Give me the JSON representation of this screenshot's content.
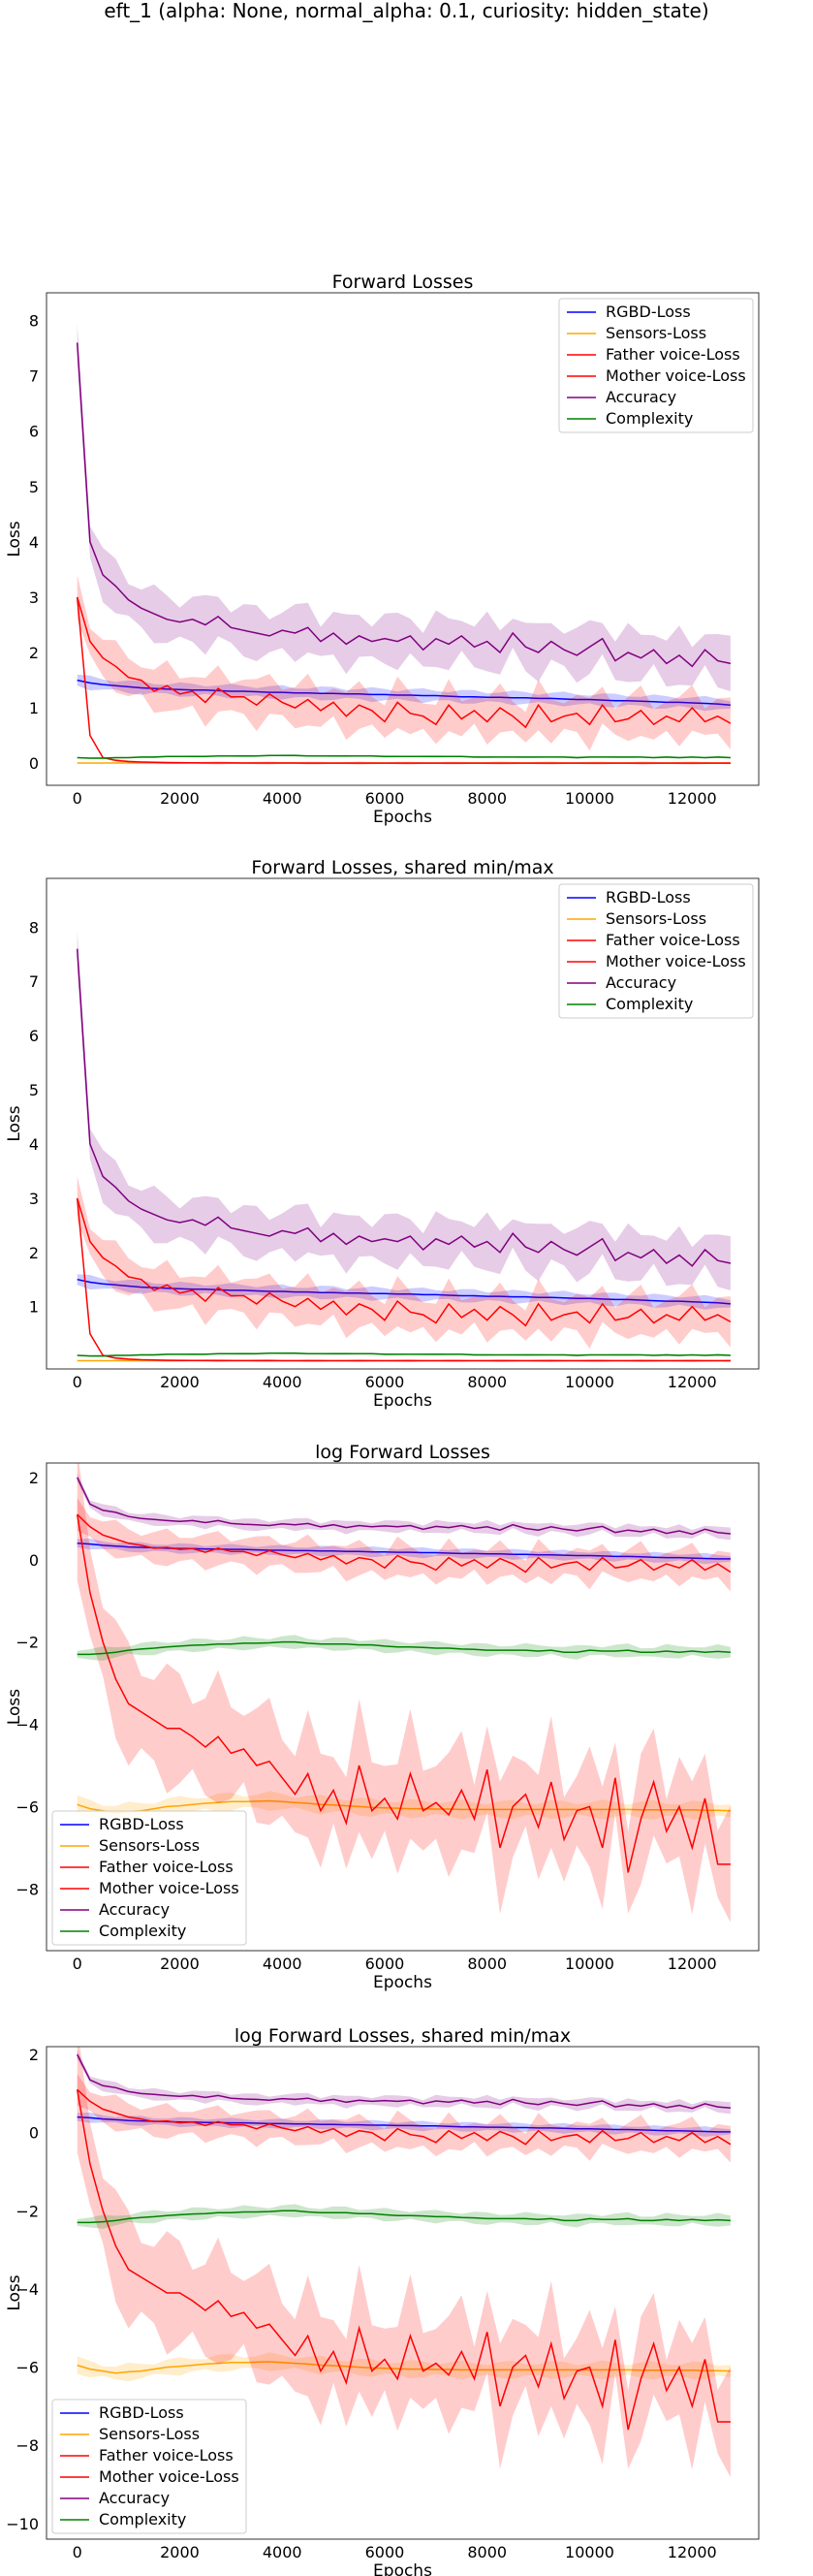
{
  "figure": {
    "suptitle": "eft_1 (alpha: None, normal_alpha: 0.1, curiosity: hidden_state)"
  },
  "chart_data": [
    {
      "type": "line",
      "title": "Forward Losses",
      "xlabel": "Epochs",
      "ylabel": "Loss",
      "xlim": [
        -600,
        13300
      ],
      "ylim": [
        -0.4,
        8.5
      ],
      "xticks": [
        0,
        2000,
        4000,
        6000,
        8000,
        10000,
        12000
      ],
      "yticks": [
        0,
        1,
        2,
        3,
        4,
        5,
        6,
        7,
        8
      ],
      "log": false,
      "legend_position": "top-right",
      "grid": false
    },
    {
      "type": "line",
      "title": "Forward Losses, shared min/max",
      "xlabel": "Epochs",
      "ylabel": "Loss",
      "xlim": [
        -600,
        13300
      ],
      "ylim": [
        -0.15,
        8.9
      ],
      "xticks": [
        0,
        2000,
        4000,
        6000,
        8000,
        10000,
        12000
      ],
      "yticks": [
        1,
        2,
        3,
        4,
        5,
        6,
        7,
        8
      ],
      "log": false,
      "legend_position": "top-right",
      "grid": false
    },
    {
      "type": "line",
      "title": "log Forward Losses",
      "xlabel": "Epochs",
      "ylabel": "Loss",
      "xlim": [
        -600,
        13300
      ],
      "ylim": [
        -9.5,
        2.35
      ],
      "xticks": [
        0,
        2000,
        4000,
        6000,
        8000,
        10000,
        12000
      ],
      "yticks": [
        2,
        0,
        -2,
        -4,
        -6,
        -8
      ],
      "log": true,
      "legend_position": "bottom-left",
      "grid": false
    },
    {
      "type": "line",
      "title": "log Forward Losses, shared min/max",
      "xlabel": "Epochs",
      "ylabel": "Loss",
      "xlim": [
        -600,
        13300
      ],
      "ylim": [
        -10.4,
        2.2
      ],
      "xticks": [
        0,
        2000,
        4000,
        6000,
        8000,
        10000,
        12000
      ],
      "yticks": [
        2,
        0,
        -2,
        -4,
        -6,
        -8,
        -10
      ],
      "log": true,
      "legend_position": "bottom-left",
      "grid": false
    }
  ],
  "series_legend": [
    {
      "name": "RGBD-Loss",
      "color": "#0000ff"
    },
    {
      "name": "Sensors-Loss",
      "color": "#ffa500"
    },
    {
      "name": "Father voice-Loss",
      "color": "#ff0000"
    },
    {
      "name": "Mother voice-Loss",
      "color": "#ff0000"
    },
    {
      "name": "Accuracy",
      "color": "#800080"
    },
    {
      "name": "Complexity",
      "color": "#008000"
    }
  ],
  "series_data": {
    "x_step": 250,
    "x_count": 52,
    "linear": {
      "rgbd": {
        "mean": [
          1.5,
          1.45,
          1.42,
          1.4,
          1.38,
          1.36,
          1.35,
          1.34,
          1.33,
          1.32,
          1.32,
          1.31,
          1.3,
          1.3,
          1.29,
          1.28,
          1.28,
          1.27,
          1.27,
          1.26,
          1.26,
          1.25,
          1.25,
          1.24,
          1.24,
          1.23,
          1.23,
          1.22,
          1.22,
          1.21,
          1.2,
          1.2,
          1.19,
          1.19,
          1.18,
          1.18,
          1.17,
          1.17,
          1.16,
          1.15,
          1.15,
          1.14,
          1.13,
          1.13,
          1.12,
          1.11,
          1.1,
          1.1,
          1.09,
          1.08,
          1.07,
          1.05
        ],
        "band": 0.1
      },
      "sensors": {
        "mean": [
          0.0025,
          0.0024,
          0.0023,
          0.0022,
          0.0022,
          0.0022,
          0.0023,
          0.0023,
          0.0024,
          0.0025,
          0.0026,
          0.0027,
          0.0027,
          0.0028,
          0.0028,
          0.0029,
          0.0028,
          0.0028,
          0.0027,
          0.0026,
          0.0026,
          0.0025,
          0.0025,
          0.0024,
          0.0024,
          0.0024,
          0.0023,
          0.0023,
          0.0023,
          0.0023,
          0.0023,
          0.0023,
          0.0023,
          0.0023,
          0.0023,
          0.0023,
          0.0023,
          0.0023,
          0.0023,
          0.0023,
          0.0023,
          0.0023,
          0.0023,
          0.0023,
          0.0022,
          0.0022,
          0.0022,
          0.0022,
          0.0022,
          0.0022,
          0.0021,
          0.0021
        ],
        "band": 0.001
      },
      "father": {
        "mean": [
          3.0,
          0.5,
          0.1,
          0.05,
          0.03,
          0.02,
          0.015,
          0.01,
          0.008,
          0.006,
          0.005,
          0.004,
          0.004,
          0.003,
          0.003,
          0.003,
          0.0025,
          0.0025,
          0.002,
          0.002,
          0.002,
          0.002,
          0.002,
          0.002,
          0.002,
          0.002,
          0.002,
          0.002,
          0.002,
          0.002,
          0.002,
          0.002,
          0.002,
          0.002,
          0.002,
          0.002,
          0.002,
          0.002,
          0.002,
          0.002,
          0.002,
          0.002,
          0.002,
          0.002,
          0.002,
          0.002,
          0.002,
          0.002,
          0.002,
          0.002,
          0.002,
          0.002
        ],
        "band": 0.02
      },
      "mother": {
        "mean": [
          3.0,
          2.2,
          1.9,
          1.75,
          1.55,
          1.5,
          1.3,
          1.4,
          1.25,
          1.3,
          1.1,
          1.35,
          1.2,
          1.2,
          1.05,
          1.25,
          1.1,
          1.0,
          1.15,
          0.95,
          1.1,
          0.85,
          1.05,
          0.95,
          0.75,
          1.1,
          0.9,
          0.85,
          0.7,
          1.05,
          0.8,
          0.95,
          0.75,
          1.0,
          0.85,
          0.65,
          1.05,
          0.75,
          0.85,
          0.9,
          0.7,
          1.05,
          0.75,
          0.8,
          0.95,
          0.7,
          0.85,
          0.75,
          1.0,
          0.75,
          0.85,
          0.72
        ],
        "band": 0.35
      },
      "accuracy": {
        "mean": [
          7.6,
          4.0,
          3.4,
          3.2,
          2.95,
          2.8,
          2.7,
          2.6,
          2.55,
          2.6,
          2.5,
          2.65,
          2.45,
          2.4,
          2.35,
          2.3,
          2.4,
          2.35,
          2.45,
          2.2,
          2.35,
          2.15,
          2.3,
          2.2,
          2.25,
          2.2,
          2.3,
          2.05,
          2.25,
          2.15,
          2.3,
          2.1,
          2.2,
          2.0,
          2.35,
          2.1,
          2.0,
          2.2,
          2.05,
          1.95,
          2.1,
          2.25,
          1.85,
          2.0,
          1.9,
          2.05,
          1.8,
          1.95,
          1.75,
          2.05,
          1.85,
          1.8
        ],
        "band": 0.4
      },
      "complexity": {
        "mean": [
          0.1,
          0.09,
          0.09,
          0.1,
          0.1,
          0.11,
          0.11,
          0.12,
          0.12,
          0.12,
          0.12,
          0.13,
          0.13,
          0.13,
          0.13,
          0.14,
          0.14,
          0.14,
          0.13,
          0.13,
          0.13,
          0.13,
          0.13,
          0.13,
          0.12,
          0.12,
          0.12,
          0.12,
          0.12,
          0.12,
          0.12,
          0.11,
          0.11,
          0.11,
          0.11,
          0.11,
          0.11,
          0.11,
          0.11,
          0.1,
          0.11,
          0.11,
          0.11,
          0.11,
          0.11,
          0.1,
          0.11,
          0.1,
          0.11,
          0.1,
          0.11,
          0.1
        ],
        "band": 0.015
      }
    },
    "log": {
      "rgbd": {
        "mean": [
          0.4,
          0.38,
          0.35,
          0.33,
          0.31,
          0.3,
          0.29,
          0.28,
          0.27,
          0.27,
          0.26,
          0.26,
          0.25,
          0.25,
          0.24,
          0.23,
          0.23,
          0.22,
          0.22,
          0.21,
          0.21,
          0.2,
          0.2,
          0.19,
          0.19,
          0.18,
          0.18,
          0.17,
          0.17,
          0.16,
          0.15,
          0.15,
          0.14,
          0.14,
          0.13,
          0.13,
          0.12,
          0.12,
          0.11,
          0.1,
          0.1,
          0.09,
          0.08,
          0.08,
          0.07,
          0.06,
          0.05,
          0.05,
          0.04,
          0.03,
          0.02,
          0.02
        ],
        "band": 0.1
      },
      "sensors": {
        "mean": [
          -5.95,
          -6.05,
          -6.1,
          -6.15,
          -6.12,
          -6.1,
          -6.05,
          -6.0,
          -5.98,
          -5.95,
          -5.92,
          -5.9,
          -5.88,
          -5.88,
          -5.87,
          -5.86,
          -5.88,
          -5.9,
          -5.92,
          -5.95,
          -5.96,
          -5.98,
          -6.0,
          -6.02,
          -6.03,
          -6.04,
          -6.05,
          -6.05,
          -6.06,
          -6.06,
          -6.07,
          -6.07,
          -6.07,
          -6.07,
          -6.07,
          -6.07,
          -6.07,
          -6.07,
          -6.07,
          -6.07,
          -6.07,
          -6.07,
          -6.07,
          -6.07,
          -6.08,
          -6.08,
          -6.08,
          -6.08,
          -6.08,
          -6.09,
          -6.09,
          -6.1
        ],
        "band": 0.18
      },
      "father": {
        "mean": [
          1.1,
          -0.8,
          -2.0,
          -2.9,
          -3.5,
          -3.7,
          -3.9,
          -4.1,
          -4.1,
          -4.3,
          -4.55,
          -4.3,
          -4.7,
          -4.6,
          -5.0,
          -4.9,
          -5.3,
          -5.7,
          -5.2,
          -6.1,
          -5.6,
          -6.4,
          -5.0,
          -6.1,
          -5.8,
          -6.3,
          -5.2,
          -6.1,
          -5.9,
          -6.2,
          -5.6,
          -6.3,
          -5.1,
          -7.0,
          -6.0,
          -5.7,
          -6.5,
          -5.4,
          -6.8,
          -6.1,
          -6.0,
          -7.0,
          -5.3,
          -7.6,
          -6.3,
          -5.4,
          -6.6,
          -6.0,
          -7.0,
          -5.8,
          -7.4,
          -7.4
        ],
        "band": 1.2
      },
      "mother": {
        "mean": [
          1.1,
          0.8,
          0.6,
          0.5,
          0.4,
          0.35,
          0.28,
          0.3,
          0.25,
          0.27,
          0.18,
          0.28,
          0.2,
          0.2,
          0.1,
          0.22,
          0.12,
          0.05,
          0.15,
          0.0,
          0.1,
          -0.1,
          0.05,
          0.0,
          -0.2,
          0.1,
          -0.05,
          -0.1,
          -0.25,
          0.05,
          -0.15,
          0.0,
          -0.2,
          0.03,
          -0.1,
          -0.3,
          0.05,
          -0.2,
          -0.1,
          -0.05,
          -0.25,
          0.05,
          -0.2,
          -0.15,
          0.0,
          -0.25,
          -0.1,
          -0.2,
          0.0,
          -0.25,
          -0.1,
          -0.3
        ],
        "band": 0.35
      },
      "accuracy": {
        "mean": [
          2.0,
          1.35,
          1.2,
          1.15,
          1.05,
          1.0,
          0.98,
          0.95,
          0.93,
          0.95,
          0.9,
          0.95,
          0.88,
          0.86,
          0.85,
          0.83,
          0.87,
          0.85,
          0.88,
          0.8,
          0.85,
          0.78,
          0.83,
          0.8,
          0.82,
          0.8,
          0.83,
          0.74,
          0.81,
          0.78,
          0.83,
          0.76,
          0.8,
          0.72,
          0.85,
          0.76,
          0.72,
          0.8,
          0.74,
          0.7,
          0.76,
          0.81,
          0.66,
          0.72,
          0.68,
          0.74,
          0.64,
          0.7,
          0.62,
          0.74,
          0.66,
          0.63
        ],
        "band": 0.12
      },
      "complexity": {
        "mean": [
          -2.3,
          -2.3,
          -2.28,
          -2.25,
          -2.2,
          -2.17,
          -2.15,
          -2.12,
          -2.1,
          -2.08,
          -2.07,
          -2.05,
          -2.05,
          -2.03,
          -2.03,
          -2.02,
          -2.0,
          -2.0,
          -2.03,
          -2.05,
          -2.05,
          -2.05,
          -2.07,
          -2.07,
          -2.1,
          -2.12,
          -2.12,
          -2.13,
          -2.15,
          -2.15,
          -2.17,
          -2.18,
          -2.2,
          -2.2,
          -2.2,
          -2.2,
          -2.22,
          -2.2,
          -2.25,
          -2.25,
          -2.2,
          -2.22,
          -2.22,
          -2.2,
          -2.25,
          -2.25,
          -2.22,
          -2.25,
          -2.22,
          -2.25,
          -2.23,
          -2.25
        ],
        "band": 0.13
      }
    }
  }
}
